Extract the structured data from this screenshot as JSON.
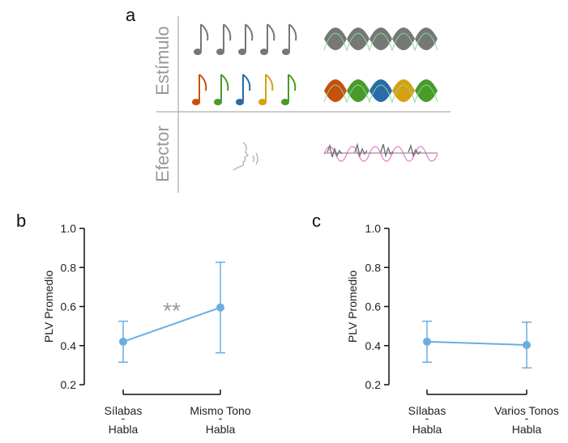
{
  "panel_a": {
    "label": "a",
    "rows": [
      "Estímulo",
      "Efector"
    ]
  },
  "chart_data": [
    {
      "type": "line",
      "label": "b",
      "y_label": "PLV Promedio",
      "categories": [
        [
          "Sílabas",
          "-",
          "Habla"
        ],
        [
          "Mismo Tono",
          "-",
          "Habla"
        ]
      ],
      "values": [
        0.42,
        0.595
      ],
      "errors": [
        0.105,
        0.232
      ],
      "color": "#6aaee0",
      "ylim": [
        0.2,
        1.0
      ],
      "yticks": [
        0.2,
        0.4,
        0.6,
        0.8,
        {
          "value": 1,
          "label": "1.0"
        }
      ],
      "annotation": "**"
    },
    {
      "type": "line",
      "label": "c",
      "y_label": "PLV Promedio",
      "categories": [
        [
          "Sílabas",
          "-",
          "Habla"
        ],
        [
          "Varios Tonos",
          "-",
          "Habla"
        ]
      ],
      "values": [
        0.42,
        0.403
      ],
      "errors": [
        0.105,
        0.117
      ],
      "color": "#6aaee0",
      "ylim": [
        0.2,
        1.0
      ],
      "yticks": [
        0.2,
        0.4,
        0.6,
        0.8,
        {
          "value": 1,
          "label": "1.0"
        }
      ]
    }
  ]
}
